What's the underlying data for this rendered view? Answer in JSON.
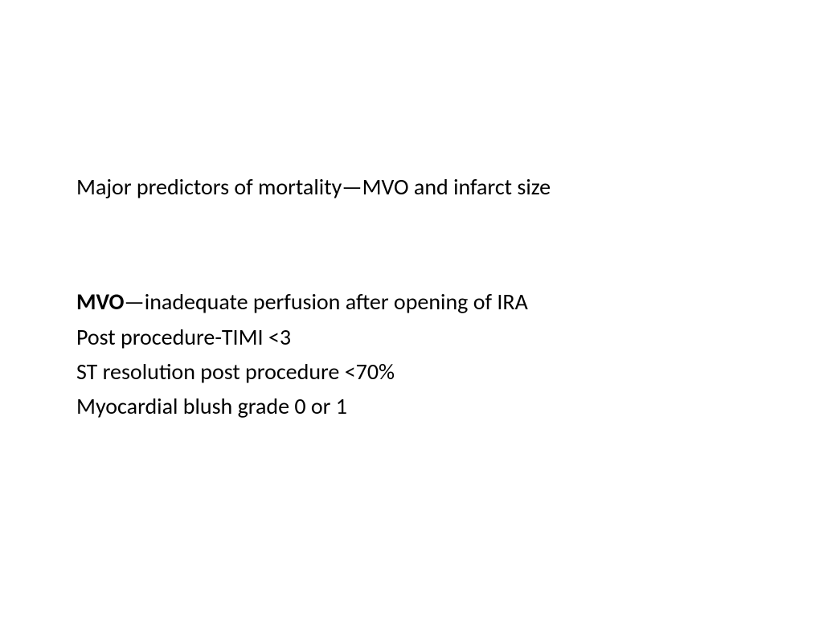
{
  "slide": {
    "heading": "Major predictors of mortality—MVO and infarct size",
    "mvo_term": "MVO",
    "mvo_definition": "—inadequate perfusion after opening of IRA",
    "line2": "Post procedure-TIMI <3",
    "line3": "ST resolution post procedure <70%",
    "line4": "Myocardial blush grade  0 or 1"
  },
  "styling": {
    "background_color": "#ffffff",
    "text_color": "#000000",
    "font_family": "Calibri",
    "body_fontsize": 28,
    "heading_fontsize": 28
  }
}
